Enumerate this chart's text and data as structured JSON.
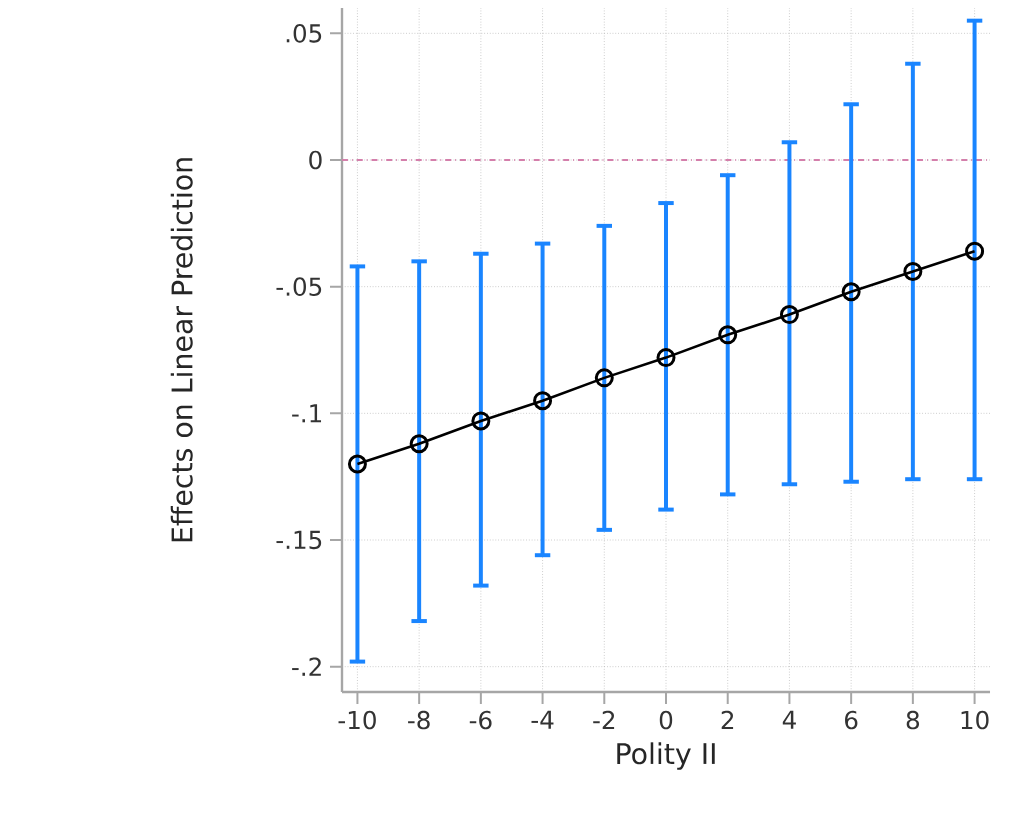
{
  "chart_data": {
    "type": "line",
    "xlabel": "Polity II",
    "ylabel": "Effects on Linear Prediction",
    "x": [
      -10,
      -8,
      -6,
      -4,
      -2,
      0,
      2,
      4,
      6,
      8,
      10
    ],
    "series": [
      {
        "color": "#000000",
        "values": [
          -0.12,
          -0.112,
          -0.103,
          -0.095,
          -0.086,
          -0.078,
          -0.069,
          -0.061,
          -0.052,
          -0.044,
          -0.036
        ],
        "errors": [
          [
            -0.198,
            -0.042
          ],
          [
            -0.182,
            -0.04
          ],
          [
            -0.168,
            -0.037
          ],
          [
            -0.156,
            -0.033
          ],
          [
            -0.146,
            -0.026
          ],
          [
            -0.138,
            -0.017
          ],
          [
            -0.132,
            -0.006
          ],
          [
            -0.128,
            0.007
          ],
          [
            -0.127,
            0.022
          ],
          [
            -0.126,
            0.038
          ],
          [
            -0.126,
            0.055
          ]
        ]
      }
    ],
    "xlim": [
      -10.5,
      10.5
    ],
    "ylim": [
      -0.21,
      0.06
    ],
    "xticks": [
      -10,
      -8,
      -6,
      -4,
      -2,
      0,
      2,
      4,
      6,
      8,
      10
    ],
    "yticks": [
      {
        "value": 0.05,
        "label": ".05"
      },
      0,
      {
        "value": -0.05,
        "label": "-.05"
      },
      {
        "value": -0.1,
        "label": "-.1"
      },
      {
        "value": -0.15,
        "label": "-.15"
      },
      {
        "value": -0.2,
        "label": "-.2"
      }
    ],
    "ref_lines": [
      {
        "axis": "y",
        "value": 0,
        "color": "#d47fab",
        "line_style": "dashdotted"
      }
    ],
    "grid": true,
    "marker": "circle",
    "line_style": "solid"
  }
}
